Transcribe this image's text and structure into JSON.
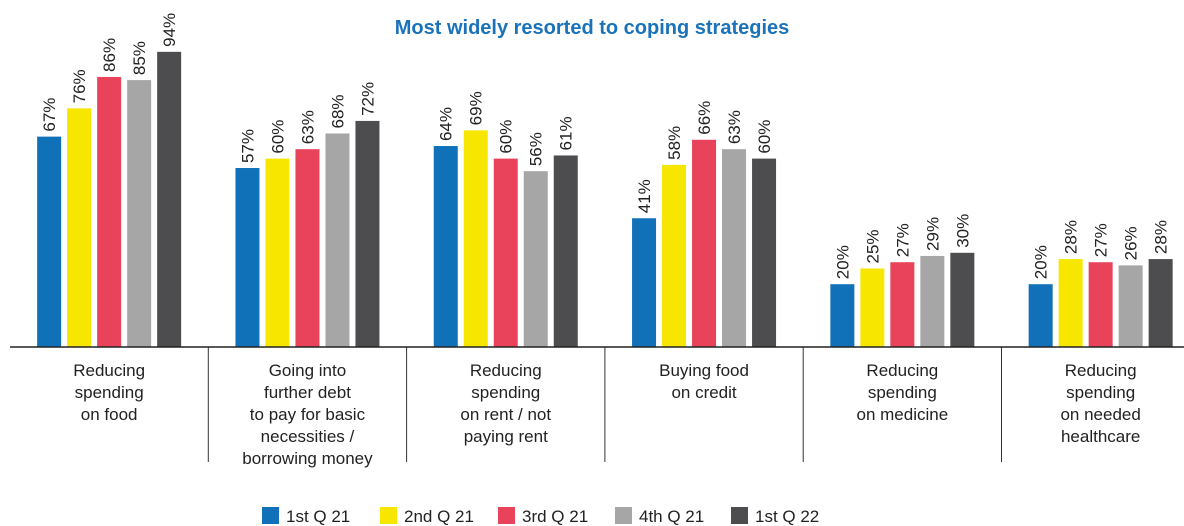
{
  "chart_data": {
    "type": "bar",
    "title": "Most widely resorted to coping strategies",
    "categories": [
      "Reducing\nspending\non food",
      "Going into\nfurther debt\nto pay for basic\nnecessities /\nborrowing money",
      "Reducing\nspending\non rent / not\npaying rent",
      "Buying food\non credit",
      "Reducing\nspending\non medicine",
      "Reducing\nspending\non needed\nhealthcare"
    ],
    "series": [
      {
        "name": "1st Q 21",
        "color": "#1070b8",
        "values": [
          67,
          57,
          64,
          41,
          20,
          20
        ],
        "value_labels": [
          "67%",
          "57%",
          "64%",
          "41%",
          "20%",
          "20%"
        ]
      },
      {
        "name": "2nd Q 21",
        "color": "#f7e600",
        "values": [
          76,
          60,
          69,
          58,
          25,
          28
        ],
        "value_labels": [
          "76%",
          "60%",
          "69%",
          "58%",
          "25%",
          "28%"
        ]
      },
      {
        "name": "3rd Q 21",
        "color": "#e8435a",
        "values": [
          86,
          63,
          60,
          66,
          27,
          27
        ],
        "value_labels": [
          "86%",
          "63%",
          "60%",
          "66%",
          "27%",
          "27%"
        ]
      },
      {
        "name": "4th Q 21",
        "color": "#a6a6a6",
        "values": [
          85,
          68,
          56,
          63,
          29,
          26
        ],
        "value_labels": [
          "85%",
          "68%",
          "56%",
          "63%",
          "29%",
          "26%"
        ]
      },
      {
        "name": "1st Q 22",
        "color": "#4d4d4f",
        "values": [
          94,
          72,
          61,
          60,
          30,
          28
        ],
        "value_labels": [
          "94%",
          "72%",
          "61%",
          "60%",
          "30%",
          "28%"
        ]
      }
    ],
    "legend": "bottom"
  }
}
